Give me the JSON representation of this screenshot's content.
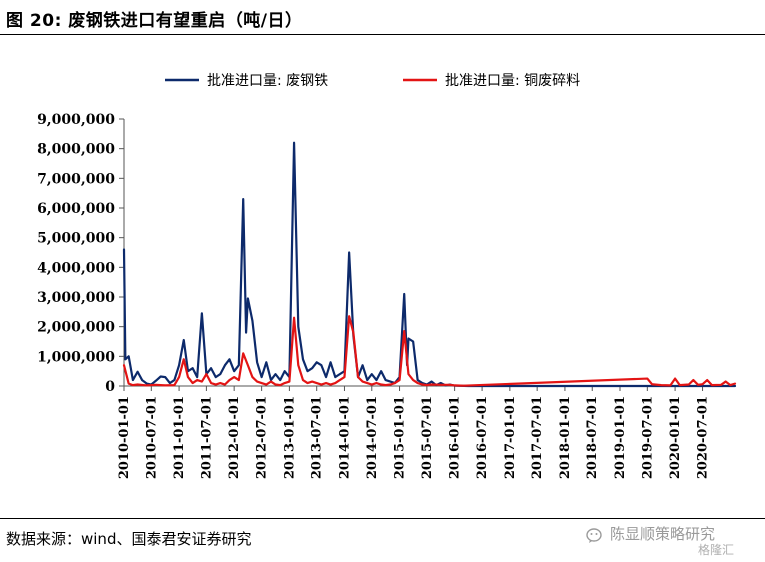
{
  "figure_title": "图 20:  废钢铁进口有望重启（吨/日）",
  "source_note": "数据来源：wind、国泰君安证券研究",
  "watermark": {
    "name": "陈显顺策略研究",
    "sub": "格隆汇"
  },
  "colors": {
    "series1": "#0d2a6b",
    "series2": "#e31414",
    "axis": "#555555"
  },
  "chart_data": {
    "type": "line",
    "title": "",
    "xlabel": "",
    "ylabel": "",
    "ylim": [
      0,
      9000000
    ],
    "yticks": [
      0,
      1000000,
      2000000,
      3000000,
      4000000,
      5000000,
      6000000,
      7000000,
      8000000,
      9000000
    ],
    "ytick_labels": [
      "0",
      "1,000,000",
      "2,000,000",
      "3,000,000",
      "4,000,000",
      "5,000,000",
      "6,000,000",
      "7,000,000",
      "8,000,000",
      "9,000,000"
    ],
    "xlim": [
      "2010-01-01",
      "2021-02-01"
    ],
    "xtick_labels": [
      "2010-01-01",
      "2010-07-01",
      "2011-01-01",
      "2011-07-01",
      "2012-01-01",
      "2012-07-01",
      "2013-01-01",
      "2013-07-01",
      "2014-01-01",
      "2014-07-01",
      "2015-01-01",
      "2015-07-01",
      "2016-01-01",
      "2016-07-01",
      "2017-01-01",
      "2017-07-01",
      "2018-01-01",
      "2018-07-01",
      "2019-01-01",
      "2019-07-01",
      "2020-01-01",
      "2020-07-01"
    ],
    "grid": false,
    "legend_position": "top",
    "series": [
      {
        "name": "批准进口量: 废钢铁",
        "points": [
          [
            "2010-01-01",
            4600000
          ],
          [
            "2010-01-10",
            900000
          ],
          [
            "2010-02-01",
            1000000
          ],
          [
            "2010-03-01",
            200000
          ],
          [
            "2010-04-01",
            480000
          ],
          [
            "2010-05-01",
            200000
          ],
          [
            "2010-06-01",
            80000
          ],
          [
            "2010-07-01",
            50000
          ],
          [
            "2010-08-01",
            180000
          ],
          [
            "2010-09-01",
            320000
          ],
          [
            "2010-10-01",
            300000
          ],
          [
            "2010-11-01",
            100000
          ],
          [
            "2010-12-01",
            200000
          ],
          [
            "2011-01-01",
            700000
          ],
          [
            "2011-02-01",
            1550000
          ],
          [
            "2011-03-01",
            500000
          ],
          [
            "2011-04-01",
            600000
          ],
          [
            "2011-05-01",
            300000
          ],
          [
            "2011-06-01",
            2450000
          ],
          [
            "2011-07-01",
            400000
          ],
          [
            "2011-08-01",
            600000
          ],
          [
            "2011-09-01",
            300000
          ],
          [
            "2011-10-01",
            400000
          ],
          [
            "2011-11-01",
            700000
          ],
          [
            "2011-12-01",
            900000
          ],
          [
            "2012-01-01",
            500000
          ],
          [
            "2012-02-01",
            700000
          ],
          [
            "2012-03-01",
            6300000
          ],
          [
            "2012-03-20",
            1800000
          ],
          [
            "2012-04-01",
            2950000
          ],
          [
            "2012-05-01",
            2200000
          ],
          [
            "2012-06-01",
            800000
          ],
          [
            "2012-07-01",
            300000
          ],
          [
            "2012-08-01",
            800000
          ],
          [
            "2012-09-01",
            200000
          ],
          [
            "2012-10-01",
            400000
          ],
          [
            "2012-11-01",
            200000
          ],
          [
            "2012-12-01",
            500000
          ],
          [
            "2013-01-01",
            300000
          ],
          [
            "2013-02-01",
            8200000
          ],
          [
            "2013-03-01",
            2000000
          ],
          [
            "2013-04-01",
            900000
          ],
          [
            "2013-05-01",
            500000
          ],
          [
            "2013-06-01",
            600000
          ],
          [
            "2013-07-01",
            800000
          ],
          [
            "2013-08-01",
            700000
          ],
          [
            "2013-09-01",
            300000
          ],
          [
            "2013-10-01",
            800000
          ],
          [
            "2013-11-01",
            300000
          ],
          [
            "2013-12-01",
            400000
          ],
          [
            "2014-01-01",
            500000
          ],
          [
            "2014-02-01",
            4500000
          ],
          [
            "2014-03-01",
            1700000
          ],
          [
            "2014-04-01",
            300000
          ],
          [
            "2014-05-01",
            700000
          ],
          [
            "2014-06-01",
            200000
          ],
          [
            "2014-07-01",
            400000
          ],
          [
            "2014-08-01",
            200000
          ],
          [
            "2014-09-01",
            500000
          ],
          [
            "2014-10-01",
            200000
          ],
          [
            "2014-11-01",
            150000
          ],
          [
            "2014-12-01",
            100000
          ],
          [
            "2015-01-01",
            300000
          ],
          [
            "2015-02-01",
            3100000
          ],
          [
            "2015-02-20",
            700000
          ],
          [
            "2015-03-01",
            1600000
          ],
          [
            "2015-04-01",
            1500000
          ],
          [
            "2015-05-01",
            200000
          ],
          [
            "2015-06-01",
            100000
          ],
          [
            "2015-07-01",
            50000
          ],
          [
            "2015-08-01",
            150000
          ],
          [
            "2015-09-01",
            30000
          ],
          [
            "2015-10-01",
            100000
          ],
          [
            "2015-11-01",
            20000
          ],
          [
            "2015-12-01",
            50000
          ],
          [
            "2016-01-01",
            10000
          ],
          [
            "2016-04-01",
            0
          ],
          [
            "2021-02-01",
            0
          ]
        ]
      },
      {
        "name": "批准进口量: 铜废碎料",
        "points": [
          [
            "2010-01-01",
            700000
          ],
          [
            "2010-02-01",
            80000
          ],
          [
            "2010-03-01",
            30000
          ],
          [
            "2010-04-01",
            50000
          ],
          [
            "2010-06-01",
            20000
          ],
          [
            "2010-08-01",
            40000
          ],
          [
            "2010-10-01",
            20000
          ],
          [
            "2010-12-01",
            30000
          ],
          [
            "2011-01-01",
            300000
          ],
          [
            "2011-02-01",
            900000
          ],
          [
            "2011-03-01",
            300000
          ],
          [
            "2011-04-01",
            100000
          ],
          [
            "2011-05-01",
            200000
          ],
          [
            "2011-06-01",
            150000
          ],
          [
            "2011-07-01",
            400000
          ],
          [
            "2011-08-01",
            100000
          ],
          [
            "2011-09-01",
            50000
          ],
          [
            "2011-10-01",
            100000
          ],
          [
            "2011-11-01",
            50000
          ],
          [
            "2011-12-01",
            200000
          ],
          [
            "2012-01-01",
            300000
          ],
          [
            "2012-02-01",
            200000
          ],
          [
            "2012-03-01",
            1100000
          ],
          [
            "2012-04-01",
            700000
          ],
          [
            "2012-05-01",
            300000
          ],
          [
            "2012-06-01",
            150000
          ],
          [
            "2012-07-01",
            100000
          ],
          [
            "2012-08-01",
            50000
          ],
          [
            "2012-09-01",
            150000
          ],
          [
            "2012-10-01",
            50000
          ],
          [
            "2012-11-01",
            30000
          ],
          [
            "2012-12-01",
            100000
          ],
          [
            "2013-01-01",
            150000
          ],
          [
            "2013-02-01",
            2300000
          ],
          [
            "2013-03-01",
            700000
          ],
          [
            "2013-04-01",
            200000
          ],
          [
            "2013-05-01",
            100000
          ],
          [
            "2013-06-01",
            150000
          ],
          [
            "2013-07-01",
            100000
          ],
          [
            "2013-08-01",
            50000
          ],
          [
            "2013-09-01",
            100000
          ],
          [
            "2013-10-01",
            50000
          ],
          [
            "2013-11-01",
            100000
          ],
          [
            "2013-12-01",
            200000
          ],
          [
            "2014-01-01",
            300000
          ],
          [
            "2014-02-01",
            2350000
          ],
          [
            "2014-03-01",
            1800000
          ],
          [
            "2014-04-01",
            300000
          ],
          [
            "2014-05-01",
            150000
          ],
          [
            "2014-06-01",
            100000
          ],
          [
            "2014-07-01",
            50000
          ],
          [
            "2014-08-01",
            100000
          ],
          [
            "2014-09-01",
            50000
          ],
          [
            "2014-10-01",
            30000
          ],
          [
            "2014-11-01",
            50000
          ],
          [
            "2014-12-01",
            100000
          ],
          [
            "2015-01-01",
            200000
          ],
          [
            "2015-02-01",
            1850000
          ],
          [
            "2015-03-01",
            400000
          ],
          [
            "2015-04-01",
            200000
          ],
          [
            "2015-05-01",
            100000
          ],
          [
            "2015-06-01",
            50000
          ],
          [
            "2015-07-01",
            30000
          ],
          [
            "2015-08-01",
            50000
          ],
          [
            "2015-10-01",
            40000
          ],
          [
            "2015-12-01",
            40000
          ],
          [
            "2016-01-01",
            20000
          ],
          [
            "2016-03-01",
            10000
          ],
          [
            "2019-07-01",
            250000
          ],
          [
            "2019-08-01",
            60000
          ],
          [
            "2019-10-01",
            30000
          ],
          [
            "2019-12-01",
            20000
          ],
          [
            "2020-01-01",
            250000
          ],
          [
            "2020-02-01",
            30000
          ],
          [
            "2020-04-01",
            50000
          ],
          [
            "2020-05-01",
            200000
          ],
          [
            "2020-06-01",
            40000
          ],
          [
            "2020-07-01",
            60000
          ],
          [
            "2020-08-01",
            200000
          ],
          [
            "2020-09-01",
            30000
          ],
          [
            "2020-11-01",
            40000
          ],
          [
            "2020-12-01",
            150000
          ],
          [
            "2021-01-01",
            30000
          ],
          [
            "2021-02-01",
            80000
          ]
        ]
      }
    ]
  }
}
